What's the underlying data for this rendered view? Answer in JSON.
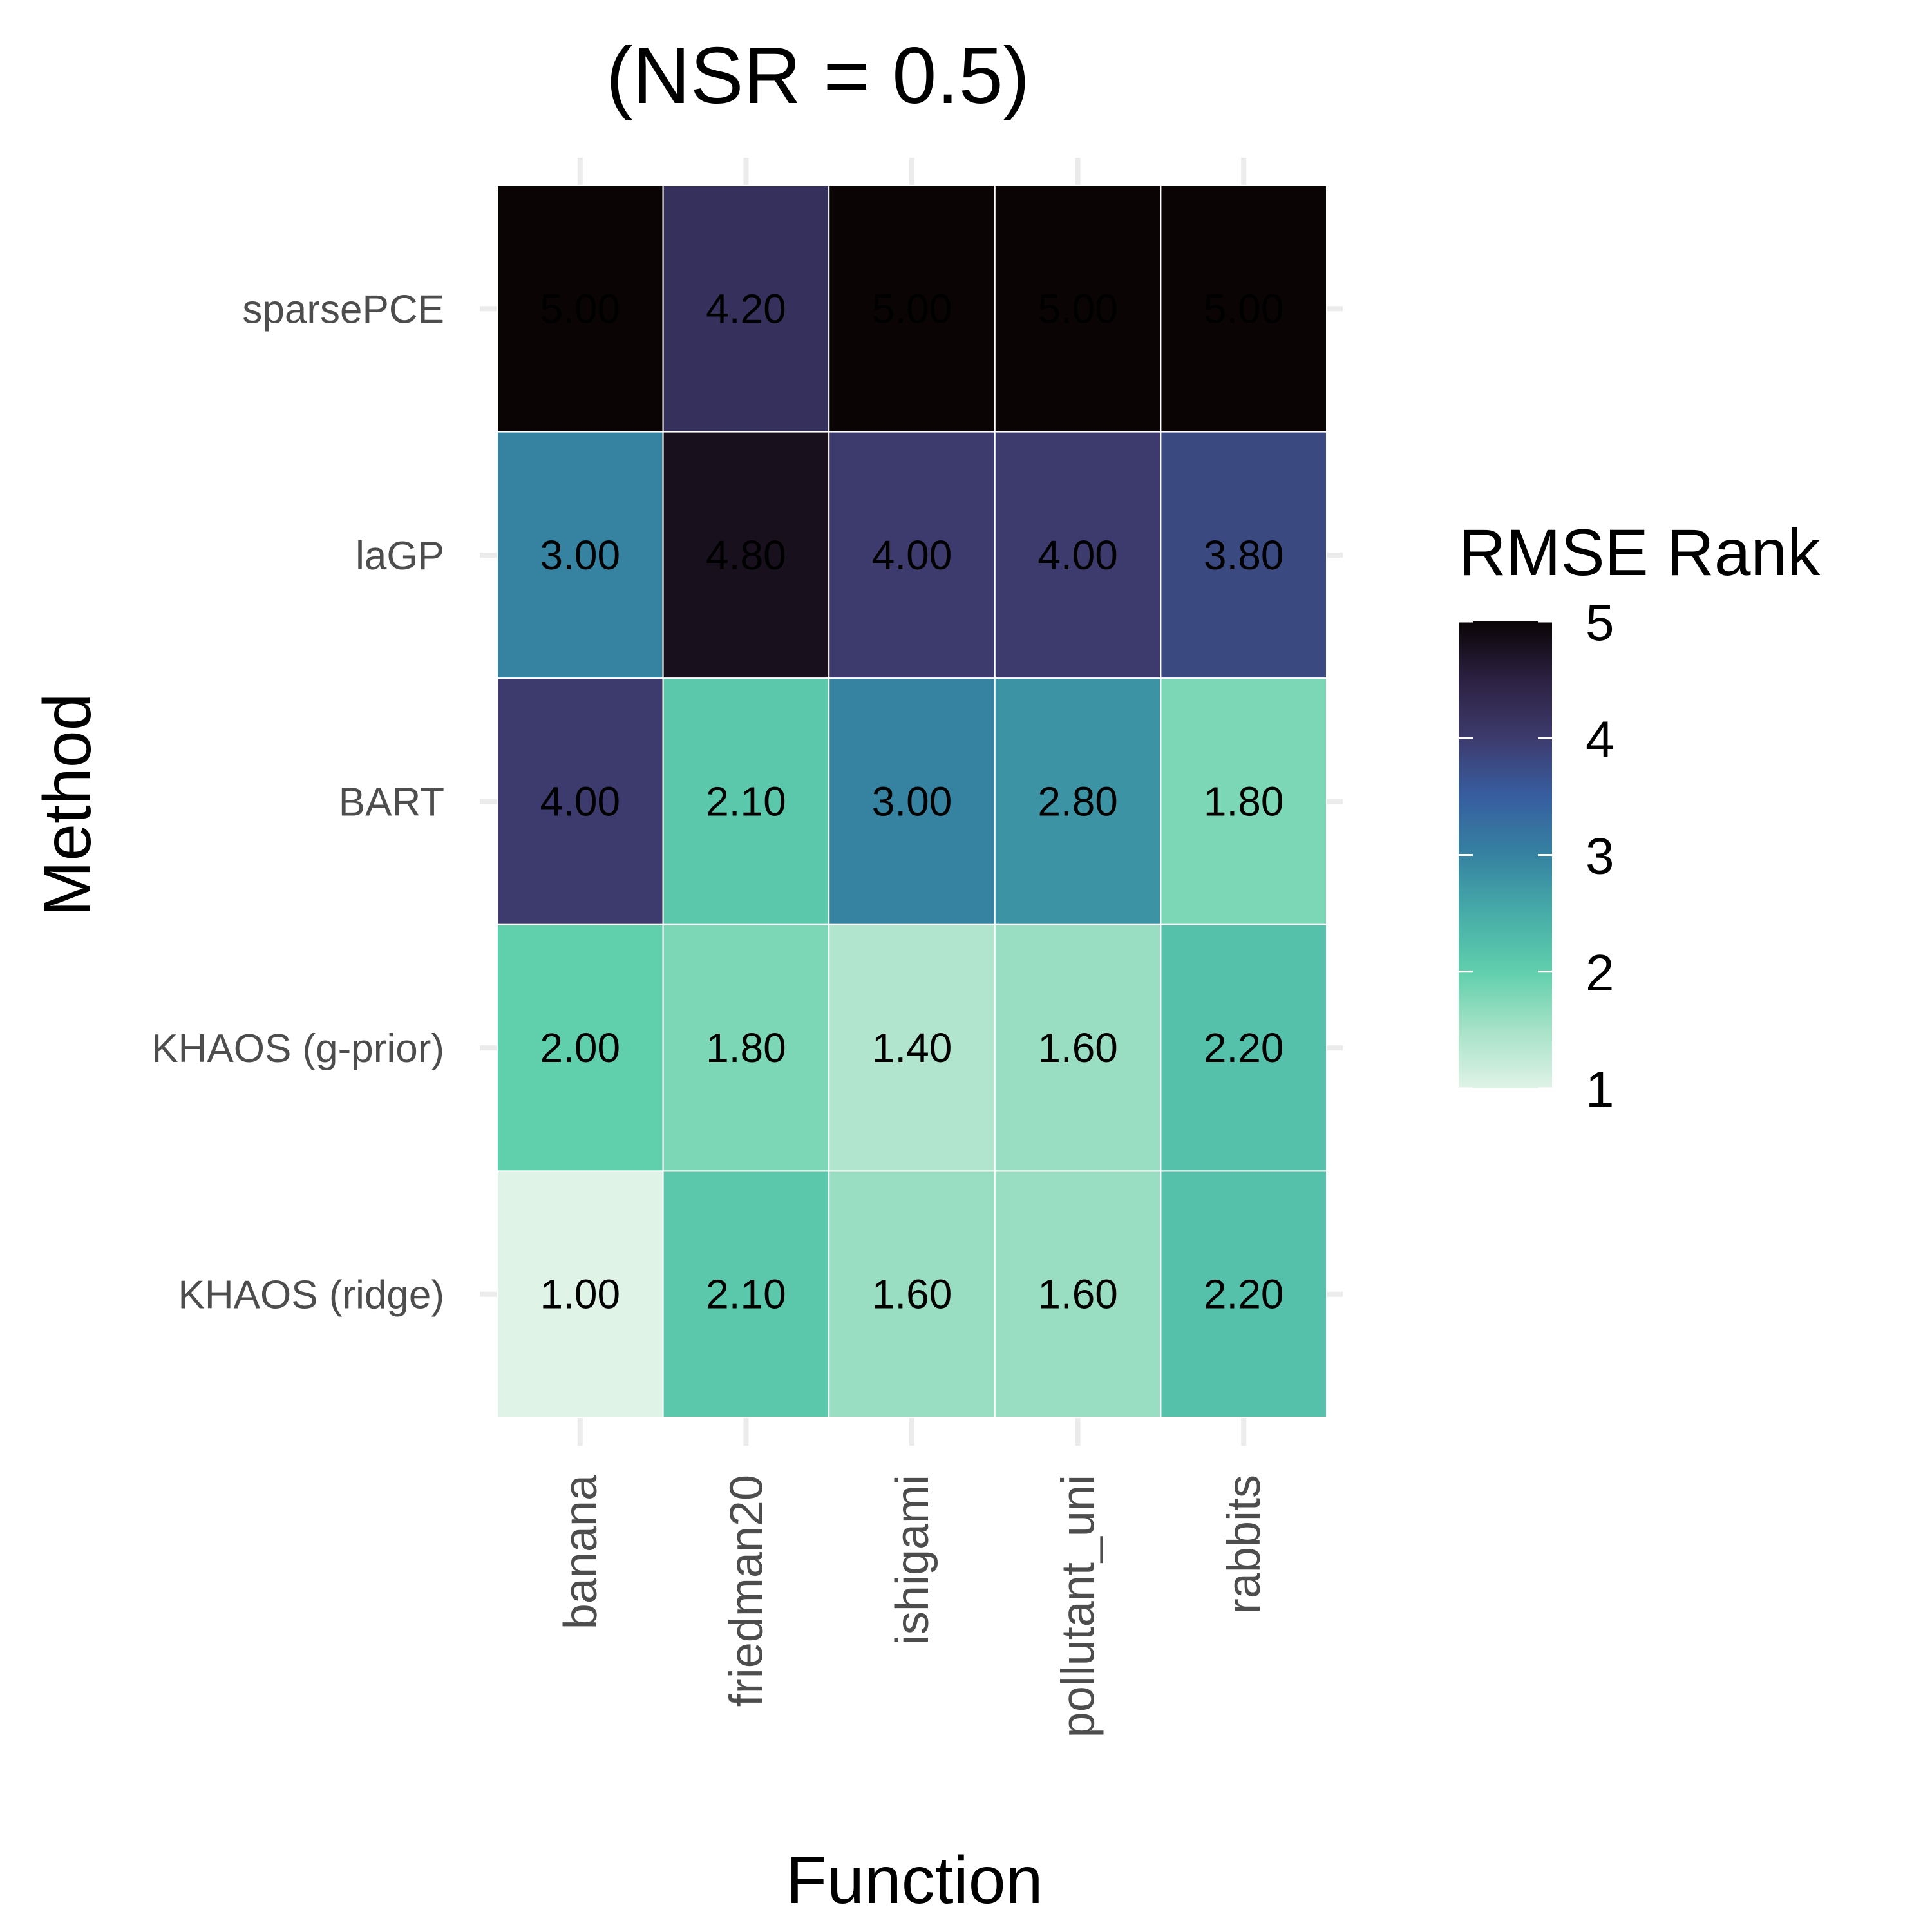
{
  "chart_data": {
    "type": "heatmap",
    "title": "(NSR = 0.5)",
    "xlabel": "Function",
    "ylabel": "Method",
    "x_categories": [
      "banana",
      "friedman20",
      "ishigami",
      "pollutant_uni",
      "rabbits"
    ],
    "y_categories": [
      "sparsePCE",
      "laGP",
      "BART",
      "KHAOS (g-prior)",
      "KHAOS (ridge)"
    ],
    "values": [
      [
        5.0,
        4.2,
        5.0,
        5.0,
        5.0
      ],
      [
        3.0,
        4.8,
        4.0,
        4.0,
        3.8
      ],
      [
        4.0,
        2.1,
        3.0,
        2.8,
        1.8
      ],
      [
        2.0,
        1.8,
        1.4,
        1.6,
        2.2
      ],
      [
        1.0,
        2.1,
        1.6,
        1.6,
        2.2
      ]
    ],
    "cell_labels": [
      [
        "5.00",
        "4.20",
        "5.00",
        "5.00",
        "5.00"
      ],
      [
        "3.00",
        "4.80",
        "4.00",
        "4.00",
        "3.80"
      ],
      [
        "4.00",
        "2.10",
        "3.00",
        "2.80",
        "1.80"
      ],
      [
        "2.00",
        "1.80",
        "1.40",
        "1.60",
        "2.20"
      ],
      [
        "1.00",
        "2.10",
        "1.60",
        "1.60",
        "2.20"
      ]
    ],
    "legend": {
      "title": "RMSE Rank",
      "range": [
        1,
        5
      ],
      "ticks": [
        1,
        2,
        3,
        4,
        5
      ],
      "tick_labels": [
        "1",
        "2",
        "3",
        "4",
        "5"
      ],
      "placement": "right"
    },
    "colors": {
      "palette": [
        "#dff3e6",
        "#a7e2c7",
        "#60cfac",
        "#47aca8",
        "#3582a1",
        "#375ea0",
        "#3d3b6d",
        "#2c2142",
        "#0a0405"
      ],
      "cell_border": "#ffffff"
    },
    "grid": true
  }
}
